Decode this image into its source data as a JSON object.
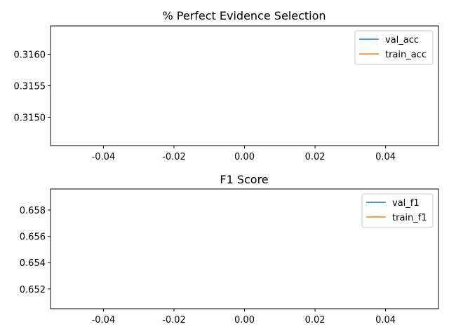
{
  "chart_data": [
    {
      "type": "line",
      "title": "% Perfect Evidence Selection",
      "xlabel": "",
      "ylabel": "",
      "xlim": [
        -0.055,
        0.055
      ],
      "ylim": [
        0.31455,
        0.31645
      ],
      "xticks": [
        "-0.04",
        "-0.02",
        "0.00",
        "0.02",
        "0.04"
      ],
      "xtick_values": [
        -0.04,
        -0.02,
        0.0,
        0.02,
        0.04
      ],
      "yticks": [
        "0.3150",
        "0.3155",
        "0.3160"
      ],
      "ytick_values": [
        0.315,
        0.3155,
        0.316
      ],
      "grid": false,
      "legend_position": "top-right",
      "series": [
        {
          "name": "val_acc",
          "color": "#1f77b4",
          "x": [],
          "y": []
        },
        {
          "name": "train_acc",
          "color": "#ff7f0e",
          "x": [],
          "y": []
        }
      ]
    },
    {
      "type": "line",
      "title": "F1 Score",
      "xlabel": "",
      "ylabel": "",
      "xlim": [
        -0.055,
        0.055
      ],
      "ylim": [
        0.6505,
        0.6596
      ],
      "xticks": [
        "-0.04",
        "-0.02",
        "0.00",
        "0.02",
        "0.04"
      ],
      "xtick_values": [
        -0.04,
        -0.02,
        0.0,
        0.02,
        0.04
      ],
      "yticks": [
        "0.652",
        "0.654",
        "0.656",
        "0.658"
      ],
      "ytick_values": [
        0.652,
        0.654,
        0.656,
        0.658
      ],
      "grid": false,
      "legend_position": "top-right",
      "series": [
        {
          "name": "val_f1",
          "color": "#1f77b4",
          "x": [],
          "y": []
        },
        {
          "name": "train_f1",
          "color": "#ff7f0e",
          "x": [],
          "y": []
        }
      ]
    }
  ]
}
